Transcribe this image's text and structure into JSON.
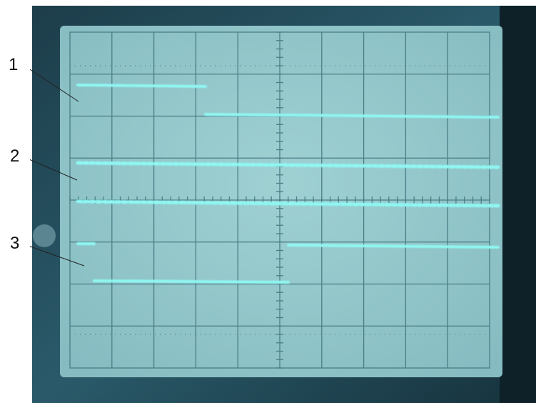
{
  "labels": [
    "1",
    "2",
    "3"
  ]
}
